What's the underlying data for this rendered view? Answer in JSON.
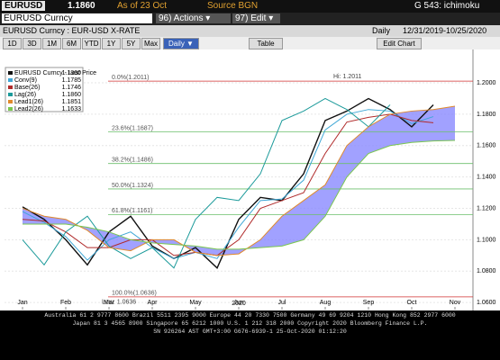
{
  "header": {
    "ticker": "EURUSD",
    "price": "1.1860",
    "as_of": "As of 23 Oct",
    "source": "Source BGN",
    "function": "G 543: ichimoku"
  },
  "toolbar": {
    "security": "EURUSD Curncy",
    "actions": "96) Actions ▾",
    "edit": "97) Edit ▾",
    "description": "EURUSD Curncy : EUR-USD X-RATE",
    "frequency": "Daily",
    "range": "12/31/2019-10/25/2020",
    "periods": [
      "1D",
      "3D",
      "1M",
      "6M",
      "YTD",
      "1Y",
      "5Y",
      "Max"
    ],
    "period_select": "Daily ▼",
    "table": "Table",
    "edit_chart": "Edit Chart"
  },
  "chart_data": {
    "type": "line",
    "year_label": "2020",
    "categories": [
      "Jan",
      null,
      "Feb",
      null,
      "Mar",
      null,
      "Apr",
      null,
      "May",
      null,
      "Jun",
      null,
      "Jul",
      null,
      "Aug",
      null,
      "Sep",
      null,
      "Oct",
      null,
      "Nov"
    ],
    "series": [
      {
        "name": "EURUSD Curncy - Last Price",
        "last": "1.1860",
        "color": "#111111",
        "values": [
          1.121,
          1.113,
          1.1,
          1.084,
          1.105,
          1.115,
          1.096,
          1.088,
          1.095,
          1.082,
          1.113,
          1.127,
          1.125,
          1.142,
          1.176,
          1.182,
          1.19,
          1.183,
          1.172,
          1.186,
          null
        ]
      },
      {
        "name": "Conv(9)",
        "last": "1.1785",
        "color": "#3fa7d6",
        "values": [
          1.118,
          1.111,
          1.102,
          1.087,
          1.1,
          1.105,
          1.095,
          1.088,
          1.092,
          1.088,
          1.108,
          1.125,
          1.126,
          1.138,
          1.17,
          1.18,
          1.183,
          1.182,
          1.174,
          1.1785,
          null
        ]
      },
      {
        "name": "Base(26)",
        "last": "1.1746",
        "color": "#b02a2a",
        "values": [
          1.113,
          1.112,
          1.105,
          1.095,
          1.095,
          1.1,
          1.1,
          1.09,
          1.092,
          1.09,
          1.1,
          1.12,
          1.125,
          1.13,
          1.155,
          1.175,
          1.178,
          1.18,
          1.176,
          1.1746,
          null
        ]
      },
      {
        "name": "Lag(26)",
        "last": "1.1860",
        "color": "#1b9a9a",
        "values": [
          1.1,
          1.084,
          1.105,
          1.115,
          1.096,
          1.088,
          1.095,
          1.082,
          1.113,
          1.127,
          1.125,
          1.142,
          1.176,
          1.182,
          1.19,
          1.183,
          1.172,
          1.186,
          null,
          null,
          null
        ]
      },
      {
        "name": "Lead1(26)",
        "last": "1.1851",
        "color": "#e08a2c",
        "values": [
          1.12,
          1.115,
          1.113,
          1.106,
          1.095,
          1.093,
          1.1,
          1.1,
          1.092,
          1.09,
          1.091,
          1.1,
          1.115,
          1.125,
          1.135,
          1.16,
          1.172,
          1.18,
          1.182,
          1.183,
          1.1851
        ]
      },
      {
        "name": "Lead2(26)",
        "last": "1.1633",
        "color": "#7ac74f",
        "values": [
          1.11,
          1.11,
          1.11,
          1.108,
          1.105,
          1.1,
          1.098,
          1.097,
          1.096,
          1.094,
          1.094,
          1.095,
          1.096,
          1.1,
          1.115,
          1.14,
          1.155,
          1.16,
          1.162,
          1.163,
          1.1633
        ]
      }
    ],
    "cloud_color": "#8a8aff",
    "ylim": [
      1.0555,
      1.2115
    ],
    "yticks": [
      {
        "value": 1.06,
        "label": "1.0600"
      },
      {
        "value": 1.08,
        "label": "1.0800"
      },
      {
        "value": 1.1,
        "label": "1.1000"
      },
      {
        "value": 1.12,
        "label": "1.1200"
      },
      {
        "value": 1.14,
        "label": "1.1400"
      },
      {
        "value": 1.16,
        "label": "1.1600"
      },
      {
        "value": 1.18,
        "label": "1.1800"
      },
      {
        "value": 1.2,
        "label": "1.2000"
      }
    ],
    "fib_levels": [
      {
        "value": 1.2011,
        "label": "0.0%(1.2011)"
      },
      {
        "value": 1.1687,
        "label": "23.6%(1.1687)"
      },
      {
        "value": 1.1486,
        "label": "38.2%(1.1486)"
      },
      {
        "value": 1.1324,
        "label": "50.0%(1.1324)"
      },
      {
        "value": 1.1161,
        "label": "61.8%(1.1161)"
      },
      {
        "value": 1.0636,
        "label": "100.0%(1.0636)"
      }
    ],
    "high": {
      "value": 1.2011,
      "label": "Hi: 1.2011"
    },
    "low": {
      "value": 1.0636,
      "label": "Low: 1.0636"
    }
  },
  "footer": {
    "line1": "Australia 61 2 9777 8600 Brazil 5511 2395 9000 Europe 44 20 7330 7500 Germany 49 69 9204 1210 Hong Kong 852 2977 6000",
    "line2": "Japan 81 3 4565 8900 Singapore 65 6212 1000 U.S. 1 212 318 2000 Copyright 2020 Bloomberg Finance L.P.",
    "line3": "SN 926264 AST GMT+3:00 G676-6939-1 25-Oct-2020 01:12:20"
  }
}
